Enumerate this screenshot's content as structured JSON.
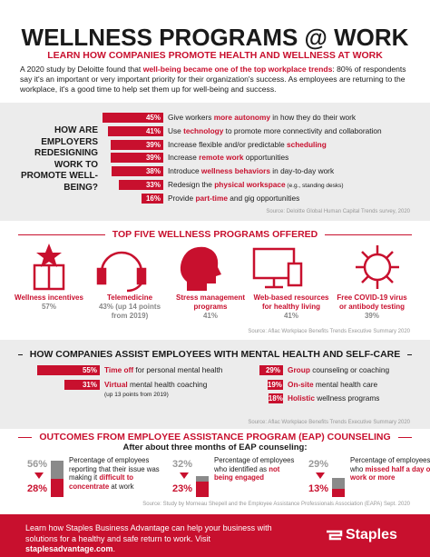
{
  "header": {
    "title": "WELLNESS PROGRAMS @ WORK",
    "subtitle": "LEARN HOW COMPANIES PROMOTE HEALTH AND WELLNESS AT WORK",
    "intro": {
      "pre": "A 2020 study by Deloitte found that ",
      "em": "well-being became one of the top workplace trends",
      "post": ": 80% of respondents say it's an important or very important priority for their organization's success. As employees are returning to the workplace, it's a good time to help set them up for well-being and success."
    }
  },
  "redesign": {
    "question": "HOW ARE EMPLOYERS REDESIGNING WORK TO PROMOTE WELL-BEING?",
    "items": [
      {
        "value": 45,
        "value_label": "45%",
        "pre": "Give workers ",
        "em": "more autonomy",
        "post": " in how they do their work"
      },
      {
        "value": 41,
        "value_label": "41%",
        "pre": "Use ",
        "em": "technology",
        "post": " to promote more connectivity and collaboration"
      },
      {
        "value": 39,
        "value_label": "39%",
        "pre": "Increase flexible and/or predictable ",
        "em": "scheduling"
      },
      {
        "value": 39,
        "value_label": "39%",
        "pre": "Increase ",
        "em": "remote work",
        "post": " opportunities"
      },
      {
        "value": 38,
        "value_label": "38%",
        "pre": "Introduce ",
        "em": "wellness behaviors",
        "post": " in day-to-day work"
      },
      {
        "value": 33,
        "value_label": "33%",
        "pre": "Redesign the ",
        "em": "physical workspace",
        "note": " (e.g., standing desks)"
      },
      {
        "value": 16,
        "value_label": "16%",
        "pre": "Provide ",
        "em": "part-time",
        "post": " and gig opportunities"
      }
    ],
    "source": "Source: Deloitte Global Human Capital Trends survey, 2020"
  },
  "programs": {
    "title": "TOP FIVE WELLNESS PROGRAMS OFFERED",
    "items": [
      {
        "name": "Wellness incentives",
        "stat": "57%"
      },
      {
        "name": "Telemedicine",
        "stat": "43%",
        "note": "(up 14 points from 2019)"
      },
      {
        "name": "Stress management programs",
        "stat": "41%"
      },
      {
        "name": "Web-based resources for healthy living",
        "stat": "41%"
      },
      {
        "name": "Free COVID-19 virus or antibody testing",
        "stat": "39%"
      }
    ],
    "source": "Source: Aflac Workplace Benefits Trends Executive Summary 2020"
  },
  "mental_health": {
    "title": "HOW COMPANIES ASSIST EMPLOYEES WITH MENTAL HEALTH AND SELF-CARE",
    "items": [
      {
        "value": 55,
        "value_label": "55%",
        "em": "Time off",
        "post": " for personal mental health"
      },
      {
        "value": 31,
        "value_label": "31%",
        "em": "Virtual",
        "post": " mental health coaching",
        "note": "(up 13 points from 2019)"
      },
      {
        "value": 29,
        "value_label": "29%",
        "em": "Group",
        "post": " counseling or coaching"
      },
      {
        "value": 19,
        "value_label": "19%",
        "em": "On-site",
        "post": " mental health care"
      },
      {
        "value": 18,
        "value_label": "18%",
        "em": "Holistic",
        "post": " wellness programs"
      }
    ],
    "source": "Source: Aflac Workplace Benefits Trends Executive Summary 2020"
  },
  "eap": {
    "title": "OUTCOMES FROM EMPLOYEE ASSISTANCE PROGRAM (EAP) COUNSELING",
    "subtitle": "After about three months of EAP counseling:",
    "items": [
      {
        "before": 56,
        "before_label": "56%",
        "after": 28,
        "after_label": "28%",
        "pre": "Percentage of employees reporting that their issue was making it ",
        "em": "difficult to concentrate",
        "post": " at work"
      },
      {
        "before": 32,
        "before_label": "32%",
        "after": 23,
        "after_label": "23%",
        "pre": "Percentage of employees who identified as ",
        "em": "not being engaged"
      },
      {
        "before": 29,
        "before_label": "29%",
        "after": 13,
        "after_label": "13%",
        "pre": "Percentage of employees who ",
        "em": "missed half a day of work or more"
      }
    ],
    "source": "Source: Study by Morneau Shepell and the Employee Assistance Professionals Association (EAPA) Sept. 2020"
  },
  "footer": {
    "pre": "Learn how Staples Business Advantage can help your business with solutions for a healthy and safe return to work. Visit ",
    "em": "staplesadvantage.com",
    "post": ".",
    "logo": "Staples"
  }
}
